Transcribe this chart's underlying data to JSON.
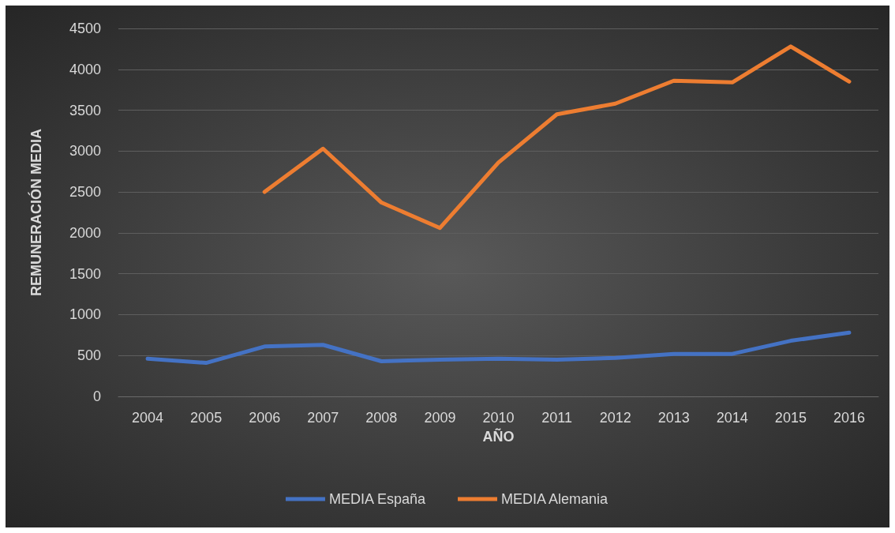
{
  "chart_data": {
    "type": "line",
    "xlabel": "AÑO",
    "ylabel": "REMUNERACIÓN MEDIA",
    "categories": [
      "2004",
      "2005",
      "2006",
      "2007",
      "2008",
      "2009",
      "2010",
      "2011",
      "2012",
      "2013",
      "2014",
      "2015",
      "2016"
    ],
    "series": [
      {
        "name": "MEDIA España",
        "color": "#4472c4",
        "values": [
          460,
          410,
          610,
          630,
          430,
          450,
          460,
          450,
          470,
          520,
          520,
          680,
          780
        ]
      },
      {
        "name": "MEDIA Alemania",
        "color": "#ed7d31",
        "values": [
          null,
          null,
          2500,
          3030,
          2370,
          2060,
          2860,
          3450,
          3580,
          3860,
          3840,
          4280,
          3850
        ]
      }
    ],
    "ylim": [
      0,
      4500
    ],
    "yticks": [
      0,
      500,
      1000,
      1500,
      2000,
      2500,
      3000,
      3500,
      4000,
      4500
    ],
    "grid": "y",
    "legend": "bottom",
    "marker": "none"
  }
}
